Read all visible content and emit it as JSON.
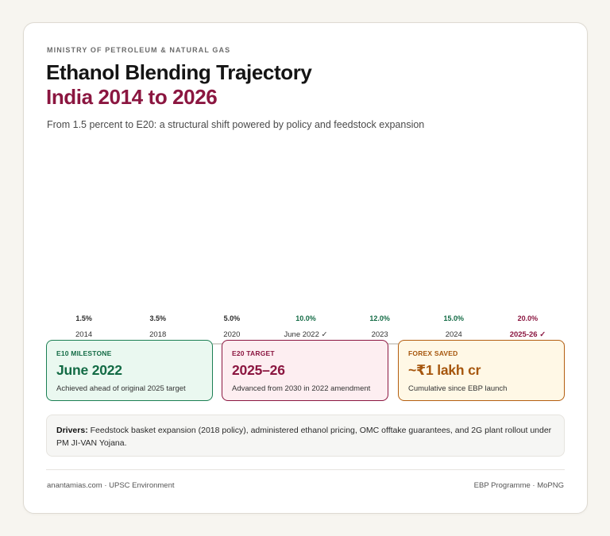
{
  "header": {
    "eyebrow": "MINISTRY OF PETROLEUM & NATURAL GAS",
    "title": "Ethanol Blending Trajectory",
    "subtitle": "India 2014 to 2026",
    "description": "From 1.5 percent to E20: a structural shift powered by policy and feedstock expansion"
  },
  "chart_data": {
    "type": "bar",
    "title": "Ethanol Blending Trajectory",
    "categories": [
      "2014",
      "2018",
      "2020",
      "June 2022 ✓",
      "2023",
      "2024",
      "2025-26 ✓"
    ],
    "values": [
      1.5,
      3.5,
      5.0,
      10.0,
      12.0,
      15.0,
      20.0
    ],
    "value_labels": [
      "1.5%",
      "3.5%",
      "5.0%",
      "10.0%",
      "12.0%",
      "15.0%",
      "20.0%"
    ],
    "value_colors": [
      "#2b2b2b",
      "#2b2b2b",
      "#2b2b2b",
      "#136b45",
      "#136b45",
      "#136b45",
      "#8b1640"
    ],
    "category_colors": [
      "#333333",
      "#333333",
      "#333333",
      "#333333",
      "#333333",
      "#333333",
      "#8b1640"
    ],
    "highlight_categories": [
      "2025-26 ✓"
    ],
    "xlabel": "",
    "ylabel": "",
    "unit": "%",
    "grid": false
  },
  "kpis": [
    {
      "label": "E10 MILESTONE",
      "value": "June 2022",
      "note": "Achieved ahead of original 2025 target"
    },
    {
      "label": "E20 TARGET",
      "value": "2025–26",
      "note": "Advanced from 2030 in 2022 amendment"
    },
    {
      "label": "FOREX SAVED",
      "value": "~₹1 lakh cr",
      "note": "Cumulative since EBP launch"
    }
  ],
  "drivers": {
    "label": "Drivers:",
    "text": " Feedstock basket expansion (2018 policy), administered ethanol pricing, OMC offtake guarantees, and 2G plant rollout under PM JI-VAN Yojana."
  },
  "footer": {
    "left": "anantamias.com · UPSC Environment",
    "right": "EBP Programme · MoPNG"
  }
}
